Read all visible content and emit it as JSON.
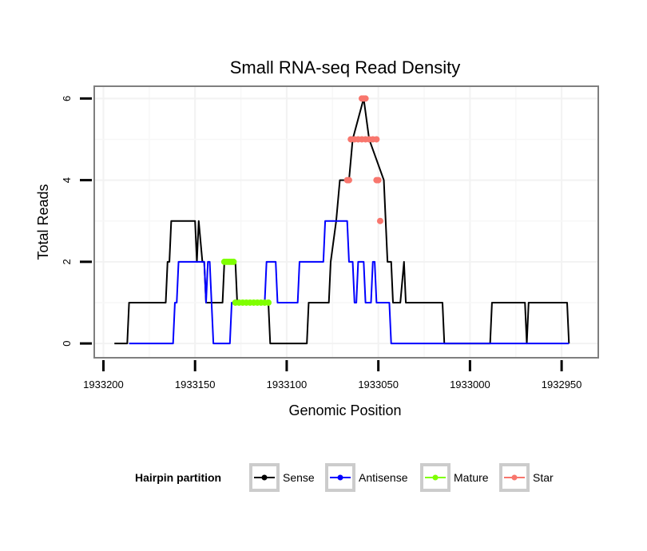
{
  "chart_data": {
    "type": "line",
    "title": "Small RNA-seq Read Density",
    "xlabel": "Genomic Position",
    "ylabel": "Total Reads",
    "xlim": [
      1933205,
      1932930
    ],
    "ylim": [
      -0.35,
      6.3
    ],
    "x_ticks": [
      1933200,
      1933150,
      1933100,
      1933050,
      1933000,
      1932950
    ],
    "x_tick_labels": [
      "1933200",
      "1933150",
      "1933100",
      "1933050",
      "1933000",
      "1932950"
    ],
    "y_ticks": [
      0,
      2,
      4,
      6
    ],
    "y_tick_labels": [
      "0",
      "2",
      "4",
      "6"
    ],
    "grid": true,
    "legend_position": "bottom",
    "legend_title": "Hairpin partition",
    "series": [
      {
        "name": "Sense",
        "color": "#000000",
        "kind": "line",
        "points": [
          [
            1933194,
            0
          ],
          [
            1933187,
            0
          ],
          [
            1933186,
            1
          ],
          [
            1933166,
            1
          ],
          [
            1933165,
            2
          ],
          [
            1933164,
            2
          ],
          [
            1933163,
            3
          ],
          [
            1933150,
            3
          ],
          [
            1933149,
            2
          ],
          [
            1933148,
            3
          ],
          [
            1933146,
            2
          ],
          [
            1933145,
            2
          ],
          [
            1933144,
            1
          ],
          [
            1933135,
            1
          ],
          [
            1933134,
            2
          ],
          [
            1933128,
            2
          ],
          [
            1933127,
            1
          ],
          [
            1933110,
            1
          ],
          [
            1933109,
            0
          ],
          [
            1933089,
            0
          ],
          [
            1933088,
            1
          ],
          [
            1933077,
            1
          ],
          [
            1933076,
            2
          ],
          [
            1933073,
            3
          ],
          [
            1933071,
            4
          ],
          [
            1933067,
            4
          ],
          [
            1933066,
            4
          ],
          [
            1933064,
            5
          ],
          [
            1933058,
            6
          ],
          [
            1933055,
            5
          ],
          [
            1933047,
            4
          ],
          [
            1933046,
            3
          ],
          [
            1933045,
            2
          ],
          [
            1933043,
            2
          ],
          [
            1933042,
            1
          ],
          [
            1933038,
            1
          ],
          [
            1933036,
            2
          ],
          [
            1933035,
            1
          ],
          [
            1933015,
            1
          ],
          [
            1933014,
            0
          ],
          [
            1932989,
            0
          ],
          [
            1932988,
            1
          ],
          [
            1932970,
            1
          ],
          [
            1932969,
            0
          ],
          [
            1932968,
            1
          ],
          [
            1932947,
            1
          ],
          [
            1932946,
            0
          ]
        ]
      },
      {
        "name": "Antisense",
        "color": "#0000ff",
        "kind": "line",
        "points": [
          [
            1933186,
            0
          ],
          [
            1933162,
            0
          ],
          [
            1933161,
            1
          ],
          [
            1933160,
            1
          ],
          [
            1933159,
            2
          ],
          [
            1933145,
            2
          ],
          [
            1933144,
            1
          ],
          [
            1933143,
            2
          ],
          [
            1933142,
            2
          ],
          [
            1933141,
            1
          ],
          [
            1933140,
            0
          ],
          [
            1933131,
            0
          ],
          [
            1933130,
            1
          ],
          [
            1933112,
            1
          ],
          [
            1933111,
            2
          ],
          [
            1933106,
            2
          ],
          [
            1933105,
            1
          ],
          [
            1933094,
            1
          ],
          [
            1933093,
            2
          ],
          [
            1933080,
            2
          ],
          [
            1933079,
            3
          ],
          [
            1933068,
            3
          ],
          [
            1933067,
            3
          ],
          [
            1933066,
            2
          ],
          [
            1933064,
            2
          ],
          [
            1933063,
            1
          ],
          [
            1933062,
            1
          ],
          [
            1933061,
            2
          ],
          [
            1933058,
            2
          ],
          [
            1933057,
            1
          ],
          [
            1933054,
            1
          ],
          [
            1933053,
            2
          ],
          [
            1933052,
            2
          ],
          [
            1933051,
            1
          ],
          [
            1933044,
            1
          ],
          [
            1933043,
            0
          ],
          [
            1932946,
            0
          ]
        ]
      },
      {
        "name": "Mature",
        "color": "#7fff00",
        "kind": "marker",
        "points": [
          [
            1933134,
            2
          ],
          [
            1933133,
            2
          ],
          [
            1933132,
            2
          ],
          [
            1933131,
            2
          ],
          [
            1933130,
            2
          ],
          [
            1933129,
            2
          ],
          [
            1933128,
            1
          ],
          [
            1933126,
            1
          ],
          [
            1933124,
            1
          ],
          [
            1933122,
            1
          ],
          [
            1933120,
            1
          ],
          [
            1933118,
            1
          ],
          [
            1933116,
            1
          ],
          [
            1933114,
            1
          ],
          [
            1933112,
            1
          ],
          [
            1933110,
            1
          ]
        ]
      },
      {
        "name": "Star",
        "color": "#f8766d",
        "kind": "marker",
        "points": [
          [
            1933067,
            4
          ],
          [
            1933066,
            4
          ],
          [
            1933065,
            5
          ],
          [
            1933063,
            5
          ],
          [
            1933061,
            5
          ],
          [
            1933059,
            5
          ],
          [
            1933057,
            5
          ],
          [
            1933055,
            5
          ],
          [
            1933053,
            5
          ],
          [
            1933051,
            5
          ],
          [
            1933059,
            6
          ],
          [
            1933058,
            6
          ],
          [
            1933057,
            6
          ],
          [
            1933051,
            4
          ],
          [
            1933050,
            4
          ],
          [
            1933049,
            3
          ]
        ]
      }
    ]
  }
}
